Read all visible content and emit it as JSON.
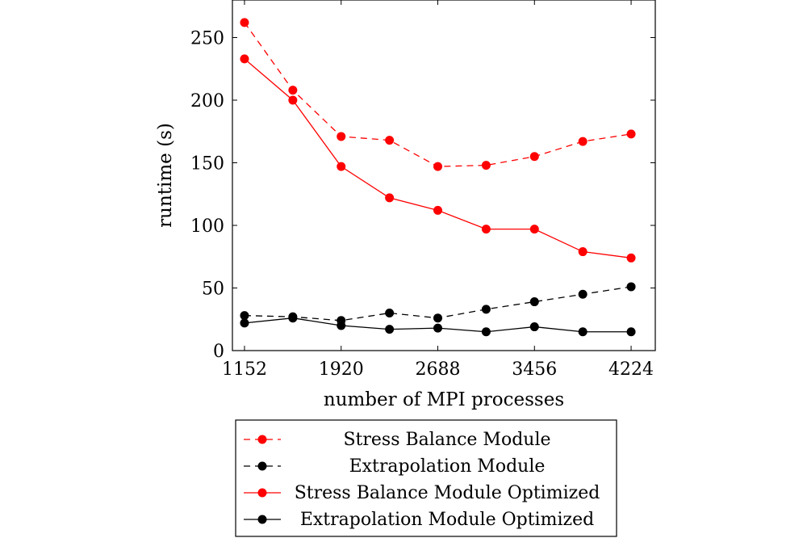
{
  "chart_data": {
    "type": "line",
    "title": "",
    "xlabel": "number of MPI processes",
    "ylabel": "runtime (s)",
    "xlim": [
      1056,
      4416
    ],
    "ylim": [
      0,
      280
    ],
    "xticks": [
      1152,
      1920,
      2688,
      3456,
      4224
    ],
    "yticks": [
      0,
      50,
      100,
      150,
      200,
      250
    ],
    "x": [
      1152,
      1536,
      1920,
      2304,
      2688,
      3072,
      3456,
      3840,
      4224
    ],
    "series": [
      {
        "name": "Stress Balance Module",
        "color": "#ff0000",
        "dashed": true,
        "values": [
          262,
          208,
          171,
          168,
          147,
          148,
          155,
          167,
          173
        ]
      },
      {
        "name": "Extrapolation Module",
        "color": "#000000",
        "dashed": true,
        "values": [
          28,
          27,
          24,
          30,
          26,
          33,
          39,
          45,
          51
        ]
      },
      {
        "name": "Stress Balance Module Optimized",
        "color": "#ff0000",
        "dashed": false,
        "values": [
          233,
          200,
          147,
          122,
          112,
          97,
          97,
          79,
          74
        ]
      },
      {
        "name": "Extrapolation Module Optimized",
        "color": "#000000",
        "dashed": false,
        "values": [
          22,
          26,
          20,
          17,
          18,
          15,
          19,
          15,
          15
        ]
      }
    ],
    "legend_position": "below",
    "grid": false
  }
}
